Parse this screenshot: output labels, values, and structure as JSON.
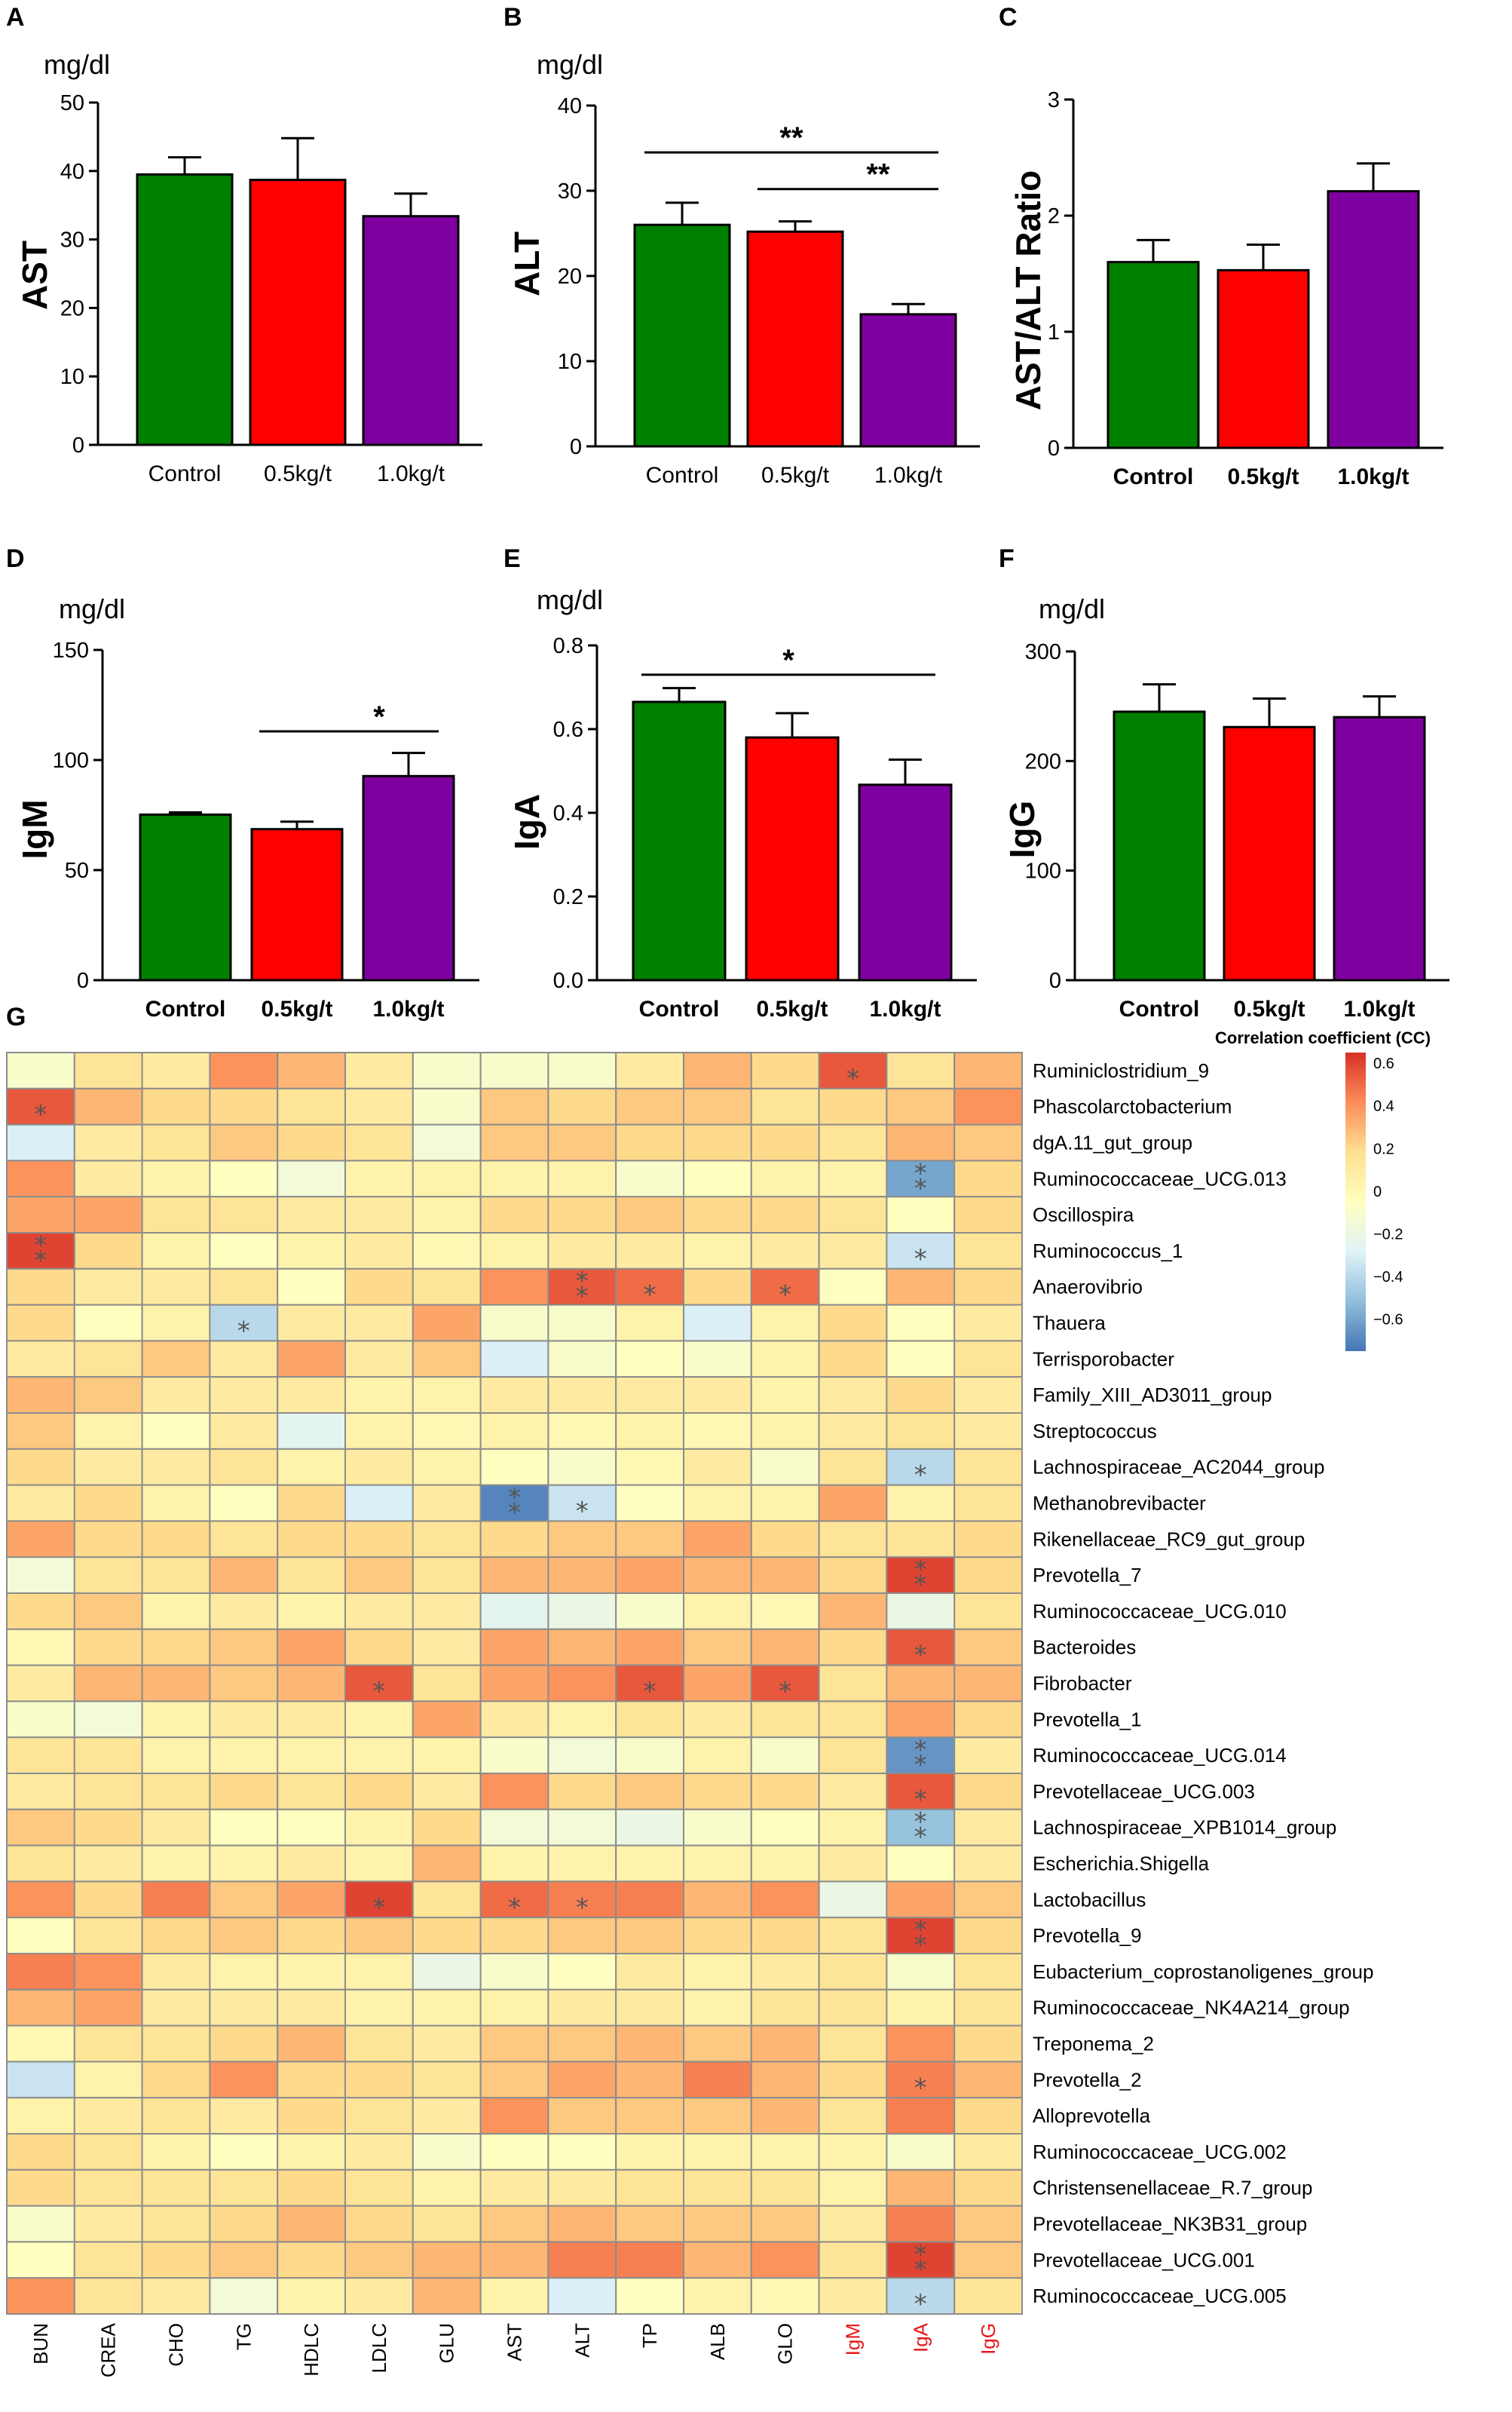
{
  "chart_data": [
    {
      "panel": "A",
      "type": "bar",
      "unit": "mg/dl",
      "ylabel": "AST",
      "categories": [
        "Control",
        "0.5kg/t",
        "1.0kg/t"
      ],
      "values": [
        39.5,
        38.7,
        33.4
      ],
      "errors": [
        2.5,
        6.1,
        3.3
      ],
      "colors": [
        "#008000",
        "#ff0000",
        "#7f00a0"
      ],
      "ylim": [
        0,
        50
      ],
      "yticks": [
        "0",
        "10",
        "20",
        "30",
        "40",
        "50"
      ],
      "significance": [],
      "bold_categories": false
    },
    {
      "panel": "B",
      "type": "bar",
      "unit": "mg/dl",
      "ylabel": "ALT",
      "categories": [
        "Control",
        "0.5kg/t",
        "1.0kg/t"
      ],
      "values": [
        26.0,
        25.2,
        15.5
      ],
      "errors": [
        2.6,
        1.2,
        1.2
      ],
      "colors": [
        "#008000",
        "#ff0000",
        "#7f00a0"
      ],
      "ylim": [
        0,
        40
      ],
      "yticks": [
        "0",
        "10",
        "20",
        "30",
        "40"
      ],
      "significance": [
        {
          "from": 0,
          "to": 2,
          "label": "**",
          "level": 34.5
        },
        {
          "from": 1,
          "to": 2,
          "label": "**",
          "level": 30.2
        }
      ],
      "bold_categories": false
    },
    {
      "panel": "C",
      "type": "bar",
      "unit": "",
      "ylabel": "AST/ALT Ratio",
      "categories": [
        "Control",
        "0.5kg/t",
        "1.0kg/t"
      ],
      "values": [
        1.6,
        1.53,
        2.21
      ],
      "errors": [
        0.19,
        0.22,
        0.24
      ],
      "colors": [
        "#008000",
        "#ff0000",
        "#7f00a0"
      ],
      "ylim": [
        0,
        3
      ],
      "yticks": [
        "0",
        "1",
        "2",
        "3"
      ],
      "significance": [],
      "bold_categories": true
    },
    {
      "panel": "D",
      "type": "bar",
      "unit": "mg/dl",
      "ylabel": "IgM",
      "categories": [
        "Control",
        "0.5kg/t",
        "1.0kg/t"
      ],
      "values": [
        75.2,
        68.6,
        92.7
      ],
      "errors": [
        1.0,
        3.4,
        10.5
      ],
      "colors": [
        "#008000",
        "#ff0000",
        "#7f00a0"
      ],
      "ylim": [
        0,
        150
      ],
      "yticks": [
        "0",
        "50",
        "100",
        "150"
      ],
      "significance": [
        {
          "from": 1,
          "to": 2,
          "label": "*",
          "level": 113
        }
      ],
      "bold_categories": true
    },
    {
      "panel": "E",
      "type": "bar",
      "unit": "mg/dl",
      "ylabel": "IgA",
      "categories": [
        "Control",
        "0.5kg/t",
        "1.0kg/t"
      ],
      "values": [
        0.665,
        0.58,
        0.467
      ],
      "errors": [
        0.033,
        0.058,
        0.06
      ],
      "colors": [
        "#008000",
        "#ff0000",
        "#7f00a0"
      ],
      "ylim": [
        0,
        0.8
      ],
      "yticks": [
        "0.0",
        "0.2",
        "0.4",
        "0.6",
        "0.8"
      ],
      "significance": [
        {
          "from": 0,
          "to": 2,
          "label": "*",
          "level": 0.73
        }
      ],
      "bold_categories": true
    },
    {
      "panel": "F",
      "type": "bar",
      "unit": "mg/dl",
      "ylabel": "IgG",
      "categories": [
        "Control",
        "0.5kg/t",
        "1.0kg/t"
      ],
      "values": [
        245,
        231,
        240
      ],
      "errors": [
        25,
        26,
        19
      ],
      "colors": [
        "#008000",
        "#ff0000",
        "#7f00a0"
      ],
      "ylim": [
        0,
        300
      ],
      "yticks": [
        "0",
        "100",
        "200",
        "300"
      ],
      "significance": [],
      "bold_categories": true
    },
    {
      "panel": "G",
      "type": "heatmap",
      "legend_title": "Correlation coefficient (CC)",
      "legend_ticks": [
        "0.6",
        "0.4",
        "0.2",
        "0",
        "−0.2",
        "−0.4",
        "−0.6"
      ],
      "colorscale": [
        "#4575b4",
        "#91bfdb",
        "#e0f3f8",
        "#ffffbf",
        "#fee090",
        "#fc8d59",
        "#d73027"
      ],
      "range": [
        -0.75,
        0.65
      ],
      "columns": [
        "BUN",
        "CREA",
        "CHO",
        "TG",
        "HDLC",
        "LDLC",
        "GLU",
        "AST",
        "ALT",
        "TP",
        "ALB",
        "GLO",
        "IgM",
        "IgA",
        "IgG"
      ],
      "highlight_columns": [
        "IgM",
        "IgA",
        "IgG"
      ],
      "rows": [
        "Ruminiclostridium_9",
        "Phascolarctobacterium",
        "dgA.11_gut_group",
        "Ruminococcaceae_UCG.013",
        "Oscillospira",
        "Ruminococcus_1",
        "Anaerovibrio",
        "Thauera",
        "Terrisporobacter",
        "Family_XIII_AD3011_group",
        "Streptococcus",
        "Lachnospiraceae_AC2044_group",
        "Methanobrevibacter",
        "Rikenellaceae_RC9_gut_group",
        "Prevotella_7",
        "Ruminococcaceae_UCG.010",
        "Bacteroides",
        "Fibrobacter",
        "Prevotella_1",
        "Ruminococcaceae_UCG.014",
        "Prevotellaceae_UCG.003",
        "Lachnospiraceae_XPB1014_group",
        "Escherichia.Shigella",
        "Lactobacillus",
        "Prevotella_9",
        "Eubacterium_coprostanoligenes_group",
        "Ruminococcaceae_NK4A214_group",
        "Treponema_2",
        "Prevotella_2",
        "Alloprevotella",
        "Ruminococcaceae_UCG.002",
        "Christensenellaceae_R.7_group",
        "Prevotellaceae_NK3B31_group",
        "Prevotellaceae_UCG.001",
        "Ruminococcaceae_UCG.005"
      ],
      "values": [
        [
          -0.1,
          0.15,
          0.1,
          0.4,
          0.3,
          0.1,
          -0.1,
          -0.1,
          -0.1,
          0.1,
          0.3,
          0.2,
          0.55,
          0.15,
          0.3
        ],
        [
          0.55,
          0.3,
          0.2,
          0.2,
          0.15,
          0.1,
          -0.1,
          0.25,
          0.2,
          0.25,
          0.25,
          0.15,
          0.2,
          0.25,
          0.4
        ],
        [
          -0.3,
          0.1,
          0.15,
          0.25,
          0.2,
          0.15,
          -0.15,
          0.25,
          0.25,
          0.2,
          0.2,
          0.2,
          0.15,
          0.3,
          0.25
        ],
        [
          0.4,
          0.1,
          0.05,
          -0.05,
          -0.15,
          0.05,
          0.05,
          0.05,
          0.05,
          -0.1,
          -0.05,
          0.05,
          0.05,
          -0.6,
          0.2
        ],
        [
          0.35,
          0.35,
          0.15,
          0.15,
          0.1,
          0.1,
          0.05,
          0.2,
          0.2,
          0.25,
          0.2,
          0.2,
          0.15,
          -0.05,
          0.2
        ],
        [
          0.6,
          0.2,
          0.05,
          -0.05,
          0.05,
          0.1,
          0.0,
          0.05,
          0.1,
          0.1,
          0.05,
          0.1,
          0.1,
          -0.35,
          0.15
        ],
        [
          0.2,
          0.1,
          0.1,
          0.15,
          -0.05,
          0.2,
          0.15,
          0.4,
          0.55,
          0.5,
          0.2,
          0.5,
          -0.05,
          0.3,
          0.2
        ],
        [
          0.2,
          -0.05,
          0.05,
          -0.4,
          0.1,
          0.1,
          0.35,
          -0.1,
          -0.1,
          0.05,
          -0.3,
          0.05,
          0.2,
          -0.05,
          0.1
        ],
        [
          0.1,
          0.15,
          0.25,
          0.1,
          0.35,
          0.1,
          0.25,
          -0.3,
          -0.1,
          -0.05,
          -0.1,
          0.05,
          0.2,
          -0.05,
          0.15
        ],
        [
          0.3,
          0.25,
          0.1,
          0.1,
          0.1,
          0.05,
          0.05,
          0.1,
          0.1,
          0.1,
          0.1,
          0.05,
          0.1,
          0.2,
          0.1
        ],
        [
          0.25,
          0.05,
          -0.05,
          0.1,
          -0.25,
          0.05,
          0.0,
          0.05,
          0.0,
          0.05,
          0.0,
          0.05,
          0.1,
          0.15,
          0.1
        ],
        [
          0.2,
          0.1,
          0.1,
          0.15,
          0.05,
          0.1,
          0.05,
          -0.05,
          -0.1,
          0.0,
          0.1,
          -0.1,
          0.15,
          -0.4,
          0.15
        ],
        [
          0.1,
          0.2,
          0.05,
          -0.05,
          0.2,
          -0.3,
          0.1,
          -0.7,
          -0.35,
          -0.05,
          0.05,
          0.05,
          0.35,
          0.05,
          0.15
        ],
        [
          0.35,
          0.2,
          0.2,
          0.15,
          0.2,
          0.2,
          0.15,
          0.2,
          0.25,
          0.25,
          0.35,
          0.2,
          0.15,
          0.15,
          0.2
        ],
        [
          -0.15,
          0.15,
          0.15,
          0.3,
          0.15,
          0.25,
          0.15,
          0.3,
          0.3,
          0.35,
          0.3,
          0.3,
          0.2,
          0.6,
          0.2
        ],
        [
          0.2,
          0.25,
          0.05,
          0.1,
          0.05,
          0.1,
          0.1,
          -0.25,
          -0.2,
          -0.1,
          0.05,
          0.0,
          0.3,
          -0.2,
          0.15
        ],
        [
          0.0,
          0.2,
          0.2,
          0.25,
          0.35,
          0.2,
          0.1,
          0.35,
          0.3,
          0.35,
          0.25,
          0.3,
          0.2,
          0.55,
          0.25
        ],
        [
          0.1,
          0.3,
          0.3,
          0.25,
          0.3,
          0.55,
          0.15,
          0.35,
          0.4,
          0.55,
          0.35,
          0.55,
          0.15,
          0.3,
          0.3
        ],
        [
          -0.1,
          -0.15,
          0.05,
          0.1,
          0.1,
          0.05,
          0.35,
          0.1,
          0.05,
          0.15,
          0.1,
          0.15,
          0.15,
          0.35,
          0.2
        ],
        [
          0.15,
          0.15,
          0.05,
          0.05,
          0.05,
          0.05,
          0.05,
          -0.1,
          -0.15,
          -0.1,
          0.05,
          -0.1,
          0.15,
          -0.65,
          0.1
        ],
        [
          0.1,
          0.15,
          0.15,
          0.2,
          0.15,
          0.2,
          0.1,
          0.4,
          0.2,
          0.25,
          0.2,
          0.2,
          0.1,
          0.55,
          0.2
        ],
        [
          0.25,
          0.2,
          0.1,
          -0.05,
          -0.05,
          0.05,
          0.2,
          -0.15,
          -0.15,
          -0.2,
          -0.1,
          -0.05,
          0.05,
          -0.5,
          0.1
        ],
        [
          0.15,
          0.1,
          0.05,
          0.05,
          0.1,
          0.05,
          0.3,
          0.05,
          0.05,
          0.05,
          0.05,
          0.05,
          0.1,
          -0.05,
          0.1
        ],
        [
          0.4,
          0.2,
          0.45,
          0.25,
          0.35,
          0.6,
          0.15,
          0.5,
          0.45,
          0.45,
          0.3,
          0.4,
          -0.2,
          0.35,
          0.25
        ],
        [
          -0.05,
          0.15,
          0.2,
          0.25,
          0.2,
          0.25,
          0.2,
          0.2,
          0.25,
          0.25,
          0.2,
          0.2,
          0.15,
          0.6,
          0.2
        ],
        [
          0.45,
          0.4,
          0.1,
          0.05,
          0.05,
          0.05,
          -0.2,
          -0.1,
          -0.05,
          0.1,
          0.05,
          0.1,
          0.15,
          -0.1,
          0.15
        ],
        [
          0.3,
          0.35,
          0.1,
          0.1,
          0.1,
          0.05,
          0.05,
          0.05,
          0.1,
          0.1,
          0.05,
          0.15,
          0.15,
          0.05,
          0.15
        ],
        [
          0.0,
          0.15,
          0.15,
          0.2,
          0.3,
          0.15,
          0.1,
          0.25,
          0.25,
          0.3,
          0.25,
          0.3,
          0.15,
          0.4,
          0.2
        ],
        [
          -0.35,
          0.05,
          0.2,
          0.4,
          0.2,
          0.2,
          0.15,
          0.25,
          0.35,
          0.3,
          0.45,
          0.3,
          0.2,
          0.45,
          0.3
        ],
        [
          0.05,
          0.1,
          0.15,
          0.1,
          0.2,
          0.15,
          0.1,
          0.4,
          0.25,
          0.25,
          0.25,
          0.3,
          0.15,
          0.45,
          0.2
        ],
        [
          0.2,
          0.15,
          0.05,
          -0.05,
          0.05,
          0.1,
          -0.1,
          -0.05,
          -0.05,
          0.05,
          0.05,
          0.05,
          0.05,
          -0.1,
          0.1
        ],
        [
          0.2,
          0.15,
          0.15,
          0.15,
          0.2,
          0.15,
          0.05,
          0.1,
          0.1,
          0.15,
          0.15,
          0.15,
          0.05,
          0.3,
          0.2
        ],
        [
          -0.1,
          0.1,
          0.15,
          0.2,
          0.3,
          0.2,
          0.15,
          0.25,
          0.3,
          0.25,
          0.25,
          0.25,
          0.1,
          0.45,
          0.25
        ],
        [
          -0.05,
          0.15,
          0.2,
          0.25,
          0.2,
          0.25,
          0.3,
          0.3,
          0.45,
          0.45,
          0.3,
          0.4,
          0.15,
          0.6,
          0.25
        ],
        [
          0.4,
          0.15,
          0.1,
          -0.15,
          0.05,
          0.1,
          0.3,
          0.05,
          -0.3,
          -0.05,
          0.05,
          0.0,
          0.1,
          -0.4,
          0.15
        ]
      ],
      "stars": [
        {
          "row": 0,
          "col": 12,
          "label": "*"
        },
        {
          "row": 1,
          "col": 0,
          "label": "*"
        },
        {
          "row": 3,
          "col": 13,
          "label": "**"
        },
        {
          "row": 5,
          "col": 0,
          "label": "**"
        },
        {
          "row": 5,
          "col": 13,
          "label": "*"
        },
        {
          "row": 6,
          "col": 8,
          "label": "**"
        },
        {
          "row": 6,
          "col": 9,
          "label": "*"
        },
        {
          "row": 6,
          "col": 11,
          "label": "*"
        },
        {
          "row": 7,
          "col": 3,
          "label": "*"
        },
        {
          "row": 11,
          "col": 13,
          "label": "*"
        },
        {
          "row": 12,
          "col": 7,
          "label": "**"
        },
        {
          "row": 12,
          "col": 8,
          "label": "*"
        },
        {
          "row": 14,
          "col": 13,
          "label": "**"
        },
        {
          "row": 16,
          "col": 13,
          "label": "*"
        },
        {
          "row": 17,
          "col": 5,
          "label": "*"
        },
        {
          "row": 17,
          "col": 9,
          "label": "*"
        },
        {
          "row": 17,
          "col": 11,
          "label": "*"
        },
        {
          "row": 19,
          "col": 13,
          "label": "**"
        },
        {
          "row": 20,
          "col": 13,
          "label": "*"
        },
        {
          "row": 21,
          "col": 13,
          "label": "**"
        },
        {
          "row": 23,
          "col": 5,
          "label": "*"
        },
        {
          "row": 23,
          "col": 7,
          "label": "*"
        },
        {
          "row": 23,
          "col": 8,
          "label": "*"
        },
        {
          "row": 24,
          "col": 13,
          "label": "**"
        },
        {
          "row": 28,
          "col": 13,
          "label": "*"
        },
        {
          "row": 33,
          "col": 13,
          "label": "**"
        },
        {
          "row": 34,
          "col": 13,
          "label": "*"
        }
      ]
    }
  ]
}
